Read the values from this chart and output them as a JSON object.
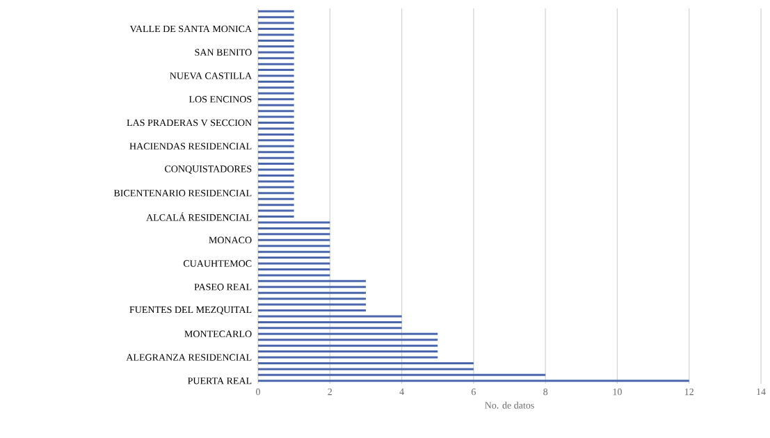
{
  "chart_data": {
    "type": "bar",
    "orientation": "horizontal",
    "xlabel": "No. de datos",
    "categories": [
      null,
      null,
      null,
      "VALLE DE SANTA MONICA",
      null,
      null,
      null,
      "SAN BENITO",
      null,
      null,
      null,
      "NUEVA CASTILLA",
      null,
      null,
      null,
      "LOS ENCINOS",
      null,
      null,
      null,
      "LAS PRADERAS V SECCION",
      null,
      null,
      null,
      "HACIENDAS RESIDENCIAL",
      null,
      null,
      null,
      "CONQUISTADORES",
      null,
      null,
      null,
      "BICENTENARIO RESIDENCIAL",
      null,
      null,
      null,
      "ALCALÁ RESIDENCIAL",
      null,
      null,
      null,
      "MONACO",
      null,
      null,
      null,
      "CUAUHTEMOC",
      null,
      null,
      null,
      "PASEO REAL",
      null,
      null,
      null,
      "FUENTES DEL MEZQUITAL",
      null,
      null,
      null,
      "MONTECARLO",
      null,
      null,
      null,
      "ALEGRANZA RESIDENCIAL",
      null,
      null,
      null,
      "PUERTA REAL"
    ],
    "values": [
      1,
      1,
      1,
      1,
      1,
      1,
      1,
      1,
      1,
      1,
      1,
      1,
      1,
      1,
      1,
      1,
      1,
      1,
      1,
      1,
      1,
      1,
      1,
      1,
      1,
      1,
      1,
      1,
      1,
      1,
      1,
      1,
      1,
      1,
      1,
      1,
      2,
      2,
      2,
      2,
      2,
      2,
      2,
      2,
      2,
      2,
      3,
      3,
      3,
      3,
      3,
      3,
      4,
      4,
      4,
      5,
      5,
      5,
      5,
      5,
      6,
      6,
      8,
      12
    ],
    "color": "#4a66ac",
    "xlim": [
      0,
      14
    ],
    "xticks": [
      0,
      2,
      4,
      6,
      8,
      10,
      12,
      14
    ],
    "grid": "x"
  }
}
